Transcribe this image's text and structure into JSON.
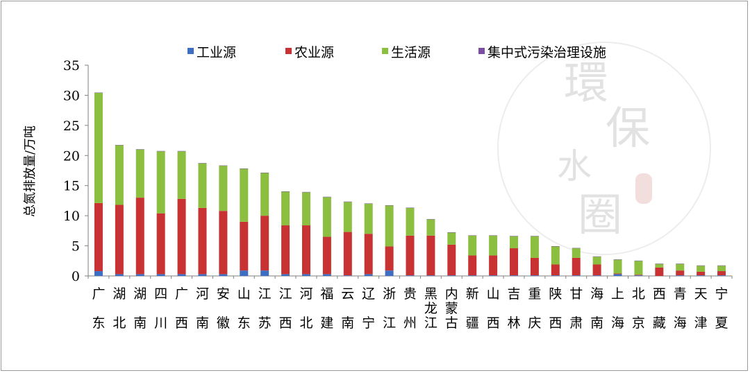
{
  "chart_data": {
    "type": "bar",
    "stacked": true,
    "ylabel": "总氮排放量/万吨",
    "ylim": [
      0,
      35
    ],
    "yticks": [
      0,
      5,
      10,
      15,
      20,
      25,
      30,
      35
    ],
    "legend_position": "top",
    "categories": [
      [
        "广",
        "东"
      ],
      [
        "湖",
        "北"
      ],
      [
        "湖",
        "南"
      ],
      [
        "四",
        "川"
      ],
      [
        "广",
        "西"
      ],
      [
        "河",
        "南"
      ],
      [
        "安",
        "徽"
      ],
      [
        "山",
        "东"
      ],
      [
        "江",
        "苏"
      ],
      [
        "江",
        "西"
      ],
      [
        "河",
        "北"
      ],
      [
        "福",
        "建"
      ],
      [
        "云",
        "南"
      ],
      [
        "辽",
        "宁"
      ],
      [
        "浙",
        "江"
      ],
      [
        "贵",
        "州"
      ],
      [
        "黑",
        "龙",
        "江"
      ],
      [
        "内",
        "蒙",
        "古"
      ],
      [
        "新",
        "疆"
      ],
      [
        "山",
        "西"
      ],
      [
        "吉",
        "林"
      ],
      [
        "重",
        "庆"
      ],
      [
        "陕",
        "西"
      ],
      [
        "甘",
        "肃"
      ],
      [
        "海",
        "南"
      ],
      [
        "上",
        "海"
      ],
      [
        "北",
        "京"
      ],
      [
        "西",
        "藏"
      ],
      [
        "青",
        "海"
      ],
      [
        "天",
        "津"
      ],
      [
        "宁",
        "夏"
      ]
    ],
    "series": [
      {
        "name": "工业源",
        "color": "#3c6fc4",
        "values": [
          0.8,
          0.3,
          0.3,
          0.3,
          0.3,
          0.3,
          0.3,
          0.9,
          0.9,
          0.3,
          0.3,
          0.3,
          0.1,
          0.3,
          0.9,
          0.1,
          0.1,
          0.1,
          0.1,
          0.1,
          0.1,
          0.1,
          0.1,
          0.1,
          0.1,
          0.3,
          0.1,
          0,
          0.1,
          0.1,
          0.1
        ]
      },
      {
        "name": "农业源",
        "color": "#c83232",
        "values": [
          11.3,
          11.5,
          12.7,
          10.1,
          12.5,
          11.0,
          10.5,
          8.1,
          9.1,
          8.1,
          8.1,
          6.2,
          7.2,
          6.7,
          4.0,
          6.6,
          6.6,
          5.1,
          3.3,
          3.3,
          4.5,
          2.9,
          1.8,
          2.9,
          1.8,
          0.1,
          0.1,
          1.4,
          0.8,
          0.6,
          0.7
        ]
      },
      {
        "name": "生活源",
        "color": "#8cbf3f",
        "values": [
          18.3,
          9.9,
          8.0,
          10.3,
          7.9,
          7.4,
          7.5,
          8.8,
          7.1,
          5.6,
          5.5,
          6.6,
          5.0,
          5.0,
          6.8,
          4.6,
          2.7,
          2.0,
          3.3,
          3.3,
          2.0,
          3.6,
          3.0,
          1.6,
          1.3,
          2.3,
          2.3,
          0.6,
          1.1,
          1.0,
          0.9
        ]
      },
      {
        "name": "集中式污染治理设施",
        "color": "#7a4fa3",
        "values": [
          0.05,
          0.05,
          0.05,
          0.05,
          0.05,
          0.05,
          0.05,
          0.05,
          0.05,
          0.05,
          0.05,
          0.05,
          0.05,
          0.05,
          0.05,
          0.05,
          0.05,
          0.05,
          0.05,
          0.05,
          0.05,
          0.05,
          0.05,
          0.05,
          0.05,
          0.05,
          0.05,
          0.05,
          0.05,
          0.05,
          0.05
        ]
      }
    ]
  },
  "watermark": {
    "chars": [
      "環",
      "保",
      "水",
      "圈"
    ]
  }
}
